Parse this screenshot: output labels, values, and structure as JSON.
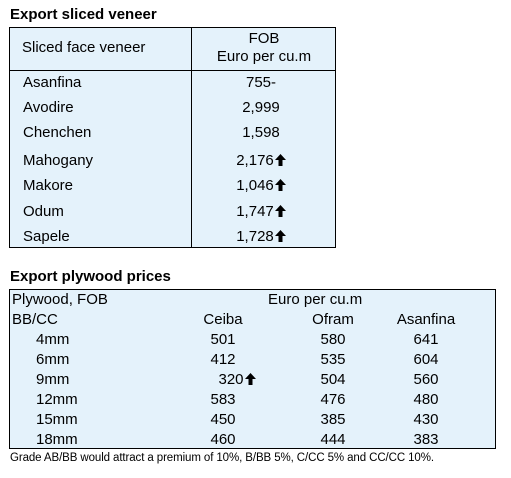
{
  "veneer": {
    "title": "Export sliced veneer",
    "header_left": "Sliced face veneer",
    "header_right_line1": "FOB",
    "header_right_line2": "Euro per cu.m",
    "rows": [
      {
        "name": "Asanfina",
        "value": "755-",
        "up": false
      },
      {
        "name": "Avodire",
        "value": "2,999",
        "up": false
      },
      {
        "name": "Chenchen",
        "value": "1,598",
        "up": false
      },
      {
        "name": "Mahogany",
        "value": "2,176",
        "up": true
      },
      {
        "name": "Makore",
        "value": "1,046",
        "up": true
      },
      {
        "name": "Odum",
        "value": "1,747",
        "up": true
      },
      {
        "name": "Sapele",
        "value": "1,728",
        "up": true
      }
    ]
  },
  "plywood": {
    "title": "Export plywood prices",
    "header_left": "Plywood, FOB",
    "header_unit": "Euro per cu.m",
    "grade": "BB/CC",
    "columns": [
      "Ceiba",
      "Ofram",
      "Asanfina"
    ],
    "rows": [
      {
        "size": "4mm",
        "values": [
          "501",
          "580",
          "641"
        ],
        "up": [
          false,
          false,
          false
        ]
      },
      {
        "size": "6mm",
        "values": [
          "412",
          "535",
          "604"
        ],
        "up": [
          false,
          false,
          false
        ]
      },
      {
        "size": "9mm",
        "values": [
          "320",
          "504",
          "560"
        ],
        "up": [
          true,
          false,
          false
        ]
      },
      {
        "size": "12mm",
        "values": [
          "583",
          "476",
          "480"
        ],
        "up": [
          false,
          false,
          false
        ]
      },
      {
        "size": "15mm",
        "values": [
          "450",
          "385",
          "430"
        ],
        "up": [
          false,
          false,
          false
        ]
      },
      {
        "size": "18mm",
        "values": [
          "460",
          "444",
          "383"
        ],
        "up": [
          false,
          false,
          false
        ]
      }
    ],
    "footnote": "Grade AB/BB would attract a premium of 10%, B/BB 5%, C/CC 5% and CC/CC 10%."
  }
}
